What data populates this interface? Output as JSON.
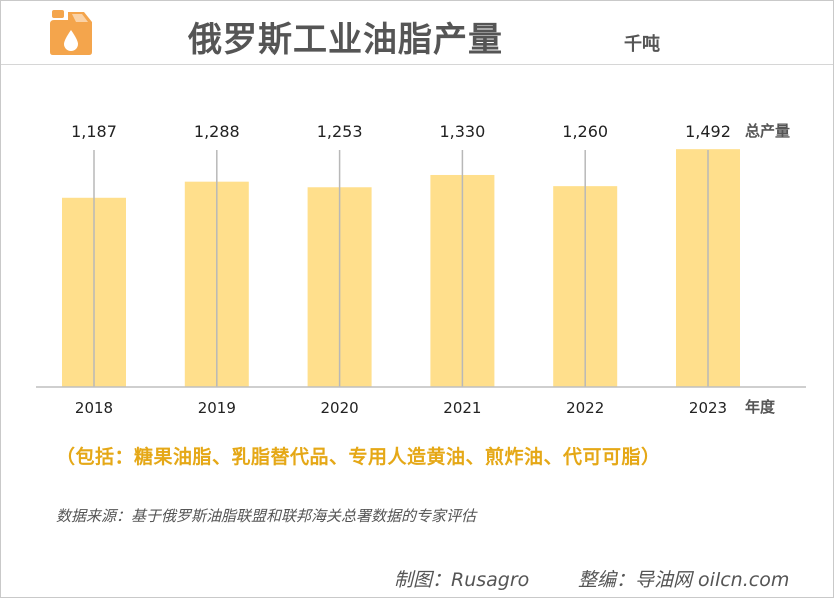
{
  "header": {
    "title": "俄罗斯工业油脂产量",
    "unit": "千吨",
    "logo_icon": "oil-canister-icon"
  },
  "colors": {
    "bar": "#ffdf8c",
    "note": "#e5a817",
    "text": "#555555",
    "logo": "#f4a54c"
  },
  "chart_data": {
    "type": "bar",
    "categories": [
      "2018",
      "2019",
      "2020",
      "2021",
      "2022",
      "2023"
    ],
    "values": [
      1187,
      1288,
      1253,
      1330,
      1260,
      1492
    ],
    "value_labels": [
      "1,187",
      "1,288",
      "1,253",
      "1,330",
      "1,260",
      "1,492"
    ],
    "series_label": "总产量",
    "x_axis_label": "年度",
    "ylim": [
      0,
      1700
    ],
    "grid": false,
    "axes_visible": false
  },
  "footer": {
    "note": "（包括：糖果油脂、乳脂替代品、专用人造黄油、煎炸油、代可可脂）",
    "source": "数据来源：基于俄罗斯油脂联盟和联邦海关总署数据的专家评估",
    "made_by": "制图：Rusagro",
    "edited_by": "整编：导油网 oilcn.com"
  }
}
